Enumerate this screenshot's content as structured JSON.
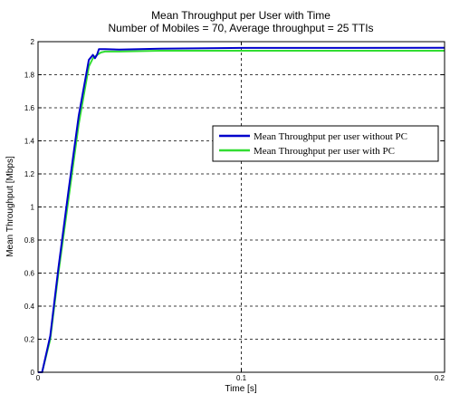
{
  "chart_data": {
    "type": "line",
    "title": "Mean Throughput per User with Time",
    "subtitle": "Number of Mobiles = 70, Average throughput = 25 TTIs",
    "xlabel": "Time [s]",
    "ylabel": "Mean Throughput [Mbps]",
    "xlim": [
      0,
      0.2
    ],
    "ylim": [
      0,
      2
    ],
    "xticks": [
      0,
      0.1,
      0.2
    ],
    "xtick_labels": [
      "0",
      "0.1",
      "0.2"
    ],
    "yticks": [
      0,
      0.2,
      0.4,
      0.6,
      0.8,
      1,
      1.2,
      1.4,
      1.6,
      1.8,
      2
    ],
    "ytick_labels": [
      "0",
      "0.2",
      "0.4",
      "0.6",
      "0.8",
      "1",
      "1.2",
      "1.4",
      "1.6",
      "1.8",
      "2"
    ],
    "grid": true,
    "legend_position": "right",
    "series": [
      {
        "name": "Mean Throughput per user without PC",
        "color": "#0000cc",
        "x": [
          0,
          0.002,
          0.006,
          0.01,
          0.015,
          0.02,
          0.025,
          0.027,
          0.028,
          0.029,
          0.03,
          0.033,
          0.04,
          0.06,
          0.1,
          0.15,
          0.2
        ],
        "y": [
          0,
          0,
          0.22,
          0.63,
          1.1,
          1.55,
          1.89,
          1.92,
          1.9,
          1.92,
          1.955,
          1.955,
          1.952,
          1.958,
          1.962,
          1.962,
          1.963
        ]
      },
      {
        "name": "Mean Throughput per user with PC",
        "color": "#33dd33",
        "x": [
          0,
          0.002,
          0.006,
          0.01,
          0.015,
          0.02,
          0.025,
          0.027,
          0.029,
          0.031,
          0.033,
          0.04,
          0.06,
          0.1,
          0.15,
          0.2
        ],
        "y": [
          0,
          0,
          0.2,
          0.6,
          1.05,
          1.5,
          1.85,
          1.9,
          1.92,
          1.935,
          1.94,
          1.94,
          1.945,
          1.945,
          1.945,
          1.945
        ]
      }
    ]
  }
}
